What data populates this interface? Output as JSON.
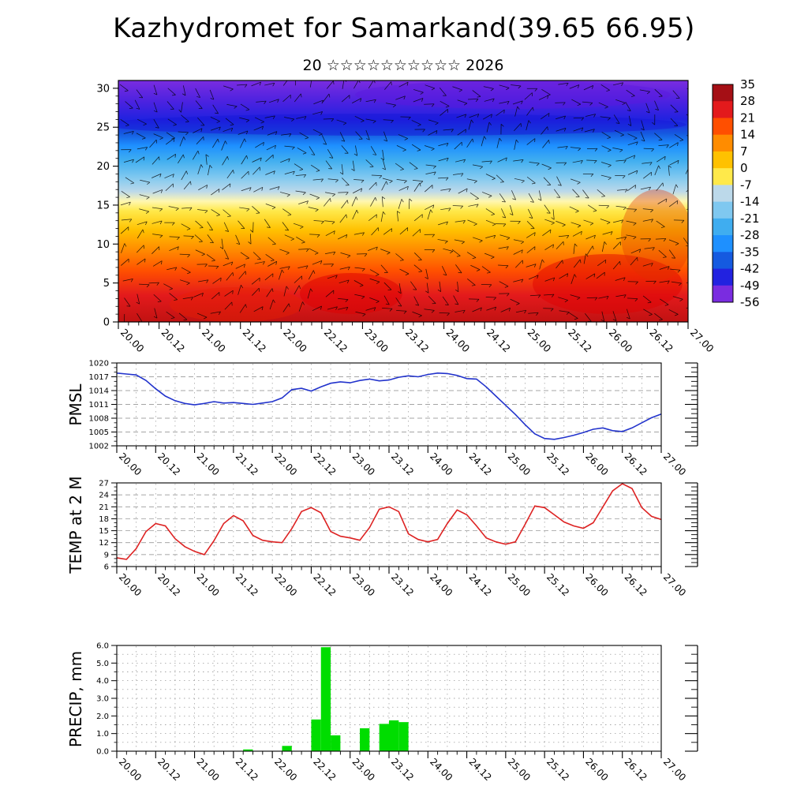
{
  "title": "Kazhydromet for Samarkand(39.65 66.95)",
  "subtitle": "20 ☆☆☆☆☆☆☆☆☆☆ 2026",
  "time_labels": [
    "20.00",
    "20.12",
    "21.00",
    "21.12",
    "22.00",
    "22.12",
    "23.00",
    "23.12",
    "24.00",
    "24.12",
    "25.00",
    "25.12",
    "26.00",
    "26.12",
    "27.00"
  ],
  "chart_data": [
    {
      "id": "temperature_height_section",
      "type": "heatmap",
      "ylabel": "",
      "ylim": [
        0,
        31
      ],
      "yticks": [
        0,
        5,
        10,
        15,
        20,
        25,
        30
      ],
      "x_range_hours": [
        0,
        168
      ],
      "colorbar": {
        "levels": [
          35,
          28,
          21,
          14,
          7,
          0,
          -7,
          -14,
          -21,
          -28,
          -35,
          -42,
          -49,
          -56
        ],
        "colors": [
          "#a50f15",
          "#e31a1c",
          "#ff4f00",
          "#ff8c00",
          "#ffc100",
          "#ffe94a",
          "#bcd9ea",
          "#7fc8f0",
          "#3fadf0",
          "#1e90ff",
          "#155ae0",
          "#2222e0",
          "#7a2ce0"
        ]
      },
      "gradient_stops": [
        [
          0.0,
          "#7a2ce0"
        ],
        [
          0.09,
          "#4a22e0"
        ],
        [
          0.16,
          "#2222e0"
        ],
        [
          0.22,
          "#155ae0"
        ],
        [
          0.27,
          "#1e90ff"
        ],
        [
          0.33,
          "#3fadf0"
        ],
        [
          0.4,
          "#7fc8f0"
        ],
        [
          0.46,
          "#bcd9ea"
        ],
        [
          0.5,
          "#fff7b0"
        ],
        [
          0.54,
          "#ffe94a"
        ],
        [
          0.62,
          "#ffc100"
        ],
        [
          0.7,
          "#ff8c00"
        ],
        [
          0.79,
          "#ff4f00"
        ],
        [
          0.89,
          "#e31a1c"
        ],
        [
          1.0,
          "#c11212"
        ]
      ]
    },
    {
      "id": "pmsl",
      "type": "line",
      "ylabel": "PMSL",
      "ylim": [
        1002,
        1020
      ],
      "yticks": [
        1002,
        1005,
        1008,
        1011,
        1014,
        1017,
        1020
      ],
      "line_color": "#2233cc",
      "x_start_hour": 0,
      "x_step_hours": 3,
      "values": [
        1017.8,
        1017.6,
        1017.4,
        1016.2,
        1014.4,
        1012.8,
        1011.8,
        1011.2,
        1010.9,
        1011.2,
        1011.6,
        1011.3,
        1011.4,
        1011.2,
        1011.0,
        1011.3,
        1011.6,
        1012.4,
        1014.2,
        1014.5,
        1013.9,
        1014.8,
        1015.6,
        1015.9,
        1015.7,
        1016.2,
        1016.5,
        1016.1,
        1016.3,
        1016.9,
        1017.2,
        1017.0,
        1017.5,
        1017.8,
        1017.7,
        1017.3,
        1016.6,
        1016.5,
        1014.8,
        1012.8,
        1010.8,
        1008.8,
        1006.6,
        1004.6,
        1003.6,
        1003.4,
        1003.8,
        1004.3,
        1004.9,
        1005.6,
        1005.9,
        1005.3,
        1005.1,
        1005.9,
        1007.0,
        1008.1,
        1008.9
      ]
    },
    {
      "id": "temp_2m",
      "type": "line",
      "ylabel": "TEMP at 2 M",
      "ylim": [
        6,
        27
      ],
      "yticks": [
        6,
        9,
        12,
        15,
        18,
        21,
        24,
        27
      ],
      "line_color": "#dd2222",
      "x_start_hour": 0,
      "x_step_hours": 3,
      "values": [
        8.2,
        7.8,
        10.5,
        14.8,
        16.8,
        16.2,
        13.0,
        11.0,
        9.8,
        9.0,
        12.5,
        16.8,
        18.8,
        17.5,
        13.8,
        12.6,
        12.2,
        12.0,
        15.5,
        19.8,
        20.8,
        19.5,
        14.8,
        13.6,
        13.2,
        12.6,
        15.8,
        20.4,
        21.0,
        19.8,
        14.2,
        12.8,
        12.2,
        12.8,
        16.8,
        20.2,
        19.0,
        16.2,
        13.2,
        12.2,
        11.6,
        12.2,
        16.6,
        21.2,
        20.8,
        19.0,
        17.2,
        16.2,
        15.6,
        17.0,
        21.0,
        25.0,
        26.8,
        25.6,
        20.8,
        18.6,
        17.8
      ]
    },
    {
      "id": "precip",
      "type": "bar",
      "ylabel": "PRECIP, mm",
      "ylim": [
        0,
        6
      ],
      "yticks": [
        0,
        1,
        2,
        3,
        4,
        5,
        6
      ],
      "ytick_labels": [
        "0.0",
        "1.0",
        "2.0",
        "3.0",
        "4.0",
        "5.0",
        "6.0"
      ],
      "bar_color": "#00dd00",
      "bar_width_hours": 3,
      "bars": [
        {
          "h": 39,
          "v": 0.1
        },
        {
          "h": 51,
          "v": 0.3
        },
        {
          "h": 60,
          "v": 1.8
        },
        {
          "h": 63,
          "v": 5.9
        },
        {
          "h": 66,
          "v": 0.9
        },
        {
          "h": 75,
          "v": 1.3
        },
        {
          "h": 81,
          "v": 1.55
        },
        {
          "h": 84,
          "v": 1.75
        },
        {
          "h": 87,
          "v": 1.65
        }
      ]
    }
  ]
}
